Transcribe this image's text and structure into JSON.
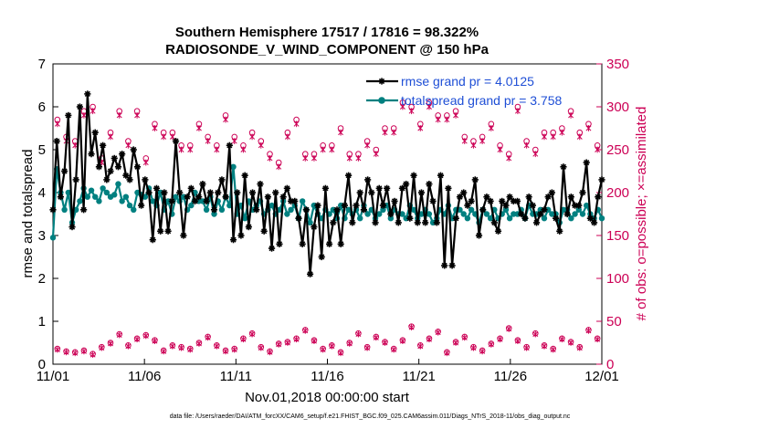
{
  "chart_data": {
    "type": "line",
    "title": "Southern Hemisphere 17517 / 17816 = 98.322%",
    "subtitle": "RADIOSONDE_V_WIND_COMPONENT @ 150 hPa",
    "xlabel": "Nov.01,2018 00:00:00 start",
    "ylabel": "rmse and totalspread",
    "y2label": "# of obs: o=possible; ×=assimilated",
    "footnote": "data file: /Users/raeder/DAI/ATM_forcXX/CAM6_setup/f.e21.FHIST_BGC.f09_025.CAM6assim.011/Diags_NTrS_2018-11/obs_diag_output.nc",
    "x_ticks": [
      "11/01",
      "11/06",
      "11/11",
      "11/16",
      "11/21",
      "11/26",
      "12/01"
    ],
    "x_range_days": [
      0,
      30
    ],
    "y_ticks": [
      "0",
      "1",
      "2",
      "3",
      "4",
      "5",
      "6",
      "7"
    ],
    "ylim": [
      0,
      7
    ],
    "y2_ticks": [
      "0",
      "50",
      "100",
      "150",
      "200",
      "250",
      "300",
      "350"
    ],
    "y2lim": [
      0,
      350
    ],
    "legend_position": "top-right",
    "colors": {
      "rmse": "#000000",
      "spread": "#008080",
      "obs": "#cc0055",
      "legend_text": "#1f4fd6"
    },
    "series": [
      {
        "name": "rmse grand pr = 4.0125",
        "axis": "left",
        "values": [
          3.6,
          5.2,
          3.9,
          4.5,
          5.8,
          3.2,
          4.3,
          6.0,
          3.6,
          6.3,
          4.9,
          5.4,
          4.6,
          5.1,
          4.3,
          4.5,
          4.8,
          4.6,
          4.9,
          4.4,
          4.3,
          5.0,
          4.6,
          3.7,
          4.3,
          4.0,
          2.9,
          4.1,
          3.1,
          4.0,
          3.1,
          3.8,
          5.2,
          4.0,
          3.0,
          3.9,
          4.1,
          3.8,
          3.9,
          4.2,
          3.8,
          4.0,
          3.6,
          4.0,
          4.3,
          3.9,
          5.1,
          2.9,
          4.0,
          3.0,
          4.4,
          3.2,
          4.0,
          3.6,
          4.2,
          3.1,
          3.9,
          2.7,
          4.0,
          2.8,
          3.9,
          4.1,
          3.8,
          3.8,
          3.4,
          2.8,
          3.6,
          2.1,
          3.2,
          3.7,
          2.5,
          4.1,
          2.8,
          3.3,
          3.6,
          2.8,
          3.7,
          4.4,
          3.3,
          3.7,
          4.0,
          3.6,
          4.3,
          4.0,
          3.3,
          4.1,
          3.7,
          4.1,
          3.5,
          3.8,
          3.3,
          4.1,
          4.2,
          3.4,
          4.4,
          3.3,
          4.0,
          3.3,
          4.2,
          3.8,
          3.3,
          4.4,
          2.3,
          4.1,
          2.3,
          3.4,
          3.9,
          4.0,
          3.7,
          3.8,
          4.3,
          3.0,
          3.6,
          3.9,
          3.8,
          3.3,
          3.1,
          3.8,
          3.7,
          3.9,
          3.8,
          3.8,
          3.5,
          3.4,
          3.9,
          3.7,
          3.3,
          3.5,
          3.6,
          3.9,
          4.0,
          3.4,
          3.1,
          4.6,
          3.5,
          3.9,
          3.7,
          3.7,
          4.0,
          4.7,
          3.4,
          3.3,
          3.9,
          4.3
        ]
      },
      {
        "name": "totalspread grand pr = 3.758",
        "axis": "left",
        "values": [
          2.95,
          4.55,
          4.0,
          3.6,
          4.0,
          3.3,
          3.6,
          3.8,
          4.1,
          3.9,
          4.05,
          3.9,
          3.8,
          4.1,
          4.0,
          3.9,
          3.95,
          4.2,
          3.8,
          3.9,
          3.7,
          3.6,
          4.0,
          3.95,
          3.9,
          4.1,
          3.8,
          3.7,
          4.0,
          3.6,
          3.8,
          3.5,
          3.9,
          3.8,
          3.9,
          3.6,
          3.7,
          4.0,
          3.8,
          3.8,
          3.6,
          3.9,
          3.5,
          3.8,
          3.6,
          3.9,
          3.7,
          4.6,
          3.5,
          3.7,
          3.4,
          3.8,
          3.6,
          3.7,
          3.8,
          3.5,
          3.6,
          3.7,
          3.5,
          3.6,
          3.8,
          3.5,
          3.6,
          3.7,
          3.4,
          3.8,
          3.6,
          3.3,
          3.7,
          3.5,
          3.4,
          3.6,
          3.5,
          3.6,
          3.4,
          3.7,
          3.4,
          3.6,
          3.5,
          3.6,
          3.4,
          3.7,
          3.5,
          3.6,
          3.4,
          3.5,
          3.6,
          3.7,
          3.4,
          3.6,
          3.5,
          3.5,
          3.4,
          3.7,
          3.6,
          3.4,
          3.5,
          3.6,
          3.5,
          3.3,
          3.4,
          3.6,
          3.5,
          3.7,
          3.4,
          3.6,
          3.6,
          3.5,
          3.4,
          3.6,
          3.5,
          3.3,
          3.6,
          3.5,
          3.4,
          3.6,
          3.4,
          3.5,
          3.6,
          3.4,
          3.5,
          3.5,
          3.6,
          3.4,
          3.7,
          3.5,
          3.5,
          3.6,
          3.4,
          3.6,
          3.5,
          3.5,
          3.3,
          3.6,
          3.6,
          3.4,
          3.5,
          3.6,
          3.5,
          3.7,
          3.5,
          3.4,
          3.6,
          3.4
        ]
      }
    ],
    "obs_counts": {
      "possible_upper": [
        285,
        265,
        260,
        295,
        300,
        240,
        270,
        295,
        260,
        295,
        240,
        280,
        270,
        270,
        255,
        255,
        280,
        265,
        255,
        290,
        265,
        255,
        270,
        260,
        245,
        235,
        270,
        285,
        245,
        245,
        255,
        255,
        275,
        245,
        245,
        260,
        250,
        275,
        275,
        305,
        300,
        280,
        305,
        290,
        290,
        295,
        265,
        260,
        265,
        280,
        255,
        245,
        300,
        260,
        250,
        270,
        270,
        275,
        295,
        270,
        280,
        255
      ],
      "assimilated_upper": [
        280,
        260,
        255,
        290,
        295,
        235,
        265,
        290,
        255,
        290,
        235,
        275,
        265,
        265,
        250,
        250,
        275,
        260,
        250,
        285,
        260,
        250,
        265,
        255,
        240,
        230,
        265,
        280,
        240,
        240,
        250,
        250,
        270,
        240,
        240,
        255,
        245,
        270,
        270,
        300,
        295,
        275,
        300,
        285,
        285,
        290,
        260,
        255,
        260,
        275,
        250,
        240,
        295,
        255,
        245,
        265,
        265,
        270,
        290,
        265,
        275,
        250
      ],
      "possible_lower": [
        18,
        15,
        14,
        16,
        12,
        20,
        25,
        35,
        22,
        30,
        34,
        28,
        16,
        22,
        20,
        18,
        25,
        32,
        22,
        16,
        18,
        30,
        36,
        20,
        15,
        24,
        26,
        30,
        40,
        28,
        18,
        22,
        14,
        25,
        36,
        20,
        32,
        26,
        18,
        28,
        44,
        22,
        30,
        38,
        14,
        26,
        32,
        20,
        16,
        24,
        30,
        42,
        28,
        20,
        36,
        22,
        18,
        30,
        26,
        20,
        40,
        30
      ],
      "assimilated_lower": [
        17,
        14,
        13,
        15,
        11,
        19,
        24,
        34,
        21,
        29,
        33,
        27,
        15,
        21,
        19,
        17,
        24,
        31,
        21,
        15,
        17,
        29,
        35,
        19,
        14,
        23,
        25,
        29,
        39,
        27,
        17,
        21,
        13,
        24,
        35,
        19,
        31,
        25,
        17,
        27,
        43,
        21,
        29,
        37,
        13,
        25,
        31,
        19,
        15,
        23,
        29,
        41,
        27,
        19,
        35,
        21,
        17,
        29,
        25,
        19,
        39,
        29
      ]
    }
  }
}
